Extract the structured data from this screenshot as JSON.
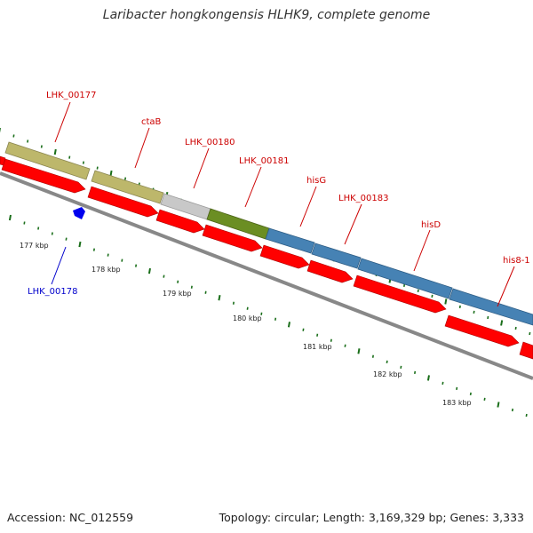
{
  "title": "Laribacter hongkongensis HLHK9, complete genome",
  "footer": {
    "accession": "Accession: NC_012559",
    "summary": "Topology: circular; Length: 3,169,329 bp; Genes: 3,333"
  },
  "colors": {
    "gene_red": "#ff0000",
    "label_red": "#cc0000",
    "label_blue": "#0000cc",
    "khaki": "#bdb76b",
    "gray": "#c8c8c8",
    "olive": "#6b8e23",
    "steelblue": "#4682b4",
    "tick_green": "#1a6e1a",
    "backbone": "#888888"
  },
  "chart_data": {
    "type": "genome-map",
    "genes": [
      {
        "label": "LHK_00177",
        "color_class": "khaki"
      },
      {
        "label": "ctaB",
        "color_class": "khaki"
      },
      {
        "label": "LHK_00180",
        "color_class": "gray"
      },
      {
        "label": "LHK_00181",
        "color_class": "olive"
      },
      {
        "label": "hisG",
        "color_class": "steelblue"
      },
      {
        "label": "LHK_00183",
        "color_class": "steelblue"
      },
      {
        "label": "hisD",
        "color_class": "steelblue"
      },
      {
        "label": "his8-1",
        "color_class": "steelblue"
      },
      {
        "label": "LHK_00178",
        "color_class": "blue",
        "strand": "reverse"
      }
    ],
    "kbp_ticks": [
      "177 kbp",
      "178 kbp",
      "179 kbp",
      "180 kbp",
      "181 kbp",
      "182 kbp",
      "183 kbp"
    ]
  }
}
